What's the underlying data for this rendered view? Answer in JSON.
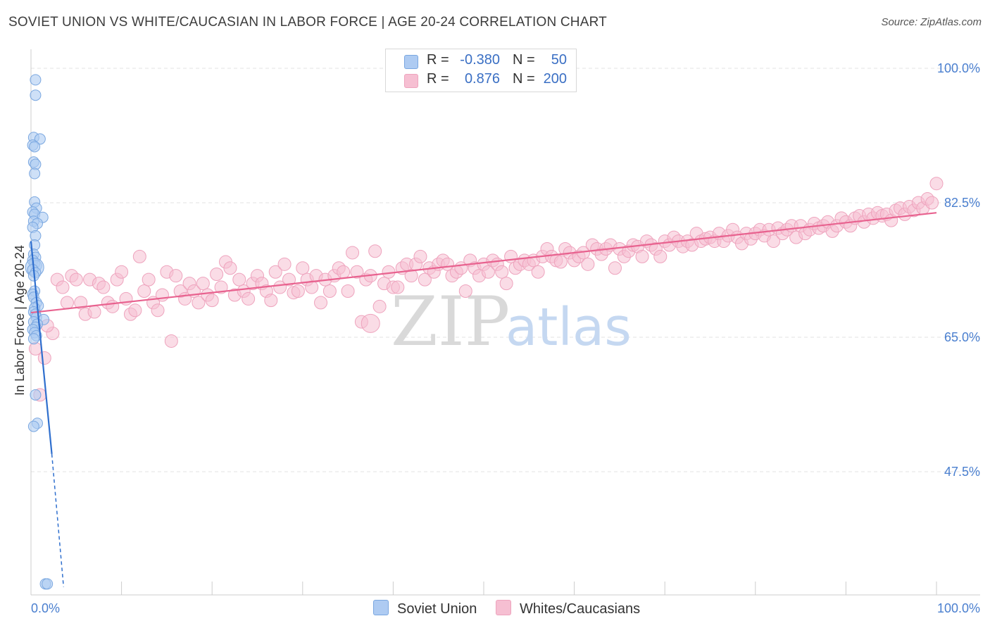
{
  "header": {
    "title": "SOVIET UNION VS WHITE/CAUCASIAN IN LABOR FORCE | AGE 20-24 CORRELATION CHART",
    "source": "Source: ZipAtlas.com"
  },
  "legend": {
    "rows": [
      {
        "r_label": "R =",
        "r_value": "-0.380",
        "n_label": "N =",
        "n_value": "50"
      },
      {
        "r_label": "R =",
        "r_value": "0.876",
        "n_label": "N =",
        "n_value": "200"
      }
    ]
  },
  "bottom_legend": {
    "items": [
      "Soviet Union",
      "Whites/Caucasians"
    ]
  },
  "watermark": {
    "zip": "ZIP",
    "atlas": "atlas"
  },
  "colors": {
    "soviet_fill": "#aecbf2",
    "soviet_stroke": "#7aa7e0",
    "soviet_line": "#2f6fce",
    "white_fill": "#f6bfd2",
    "white_stroke": "#eea3bd",
    "white_line": "#e8628f",
    "tick_text": "#4a7fcf",
    "grid": "#e3e3e3"
  },
  "chart_data": {
    "type": "scatter",
    "title": "SOVIET UNION VS WHITE/CAUCASIAN IN LABOR FORCE | AGE 20-24 CORRELATION CHART",
    "xlabel": "",
    "ylabel": "In Labor Force | Age 20-24",
    "xlim": [
      0,
      100
    ],
    "ylim": [
      30,
      103
    ],
    "x_tick_labels": [
      "0.0%",
      "100.0%"
    ],
    "y_ticks": [
      47.5,
      65.0,
      82.5,
      100.0
    ],
    "y_tick_labels": [
      "47.5%",
      "65.0%",
      "82.5%",
      "100.0%"
    ],
    "grid": true,
    "legend_position": "top-center",
    "series": [
      {
        "name": "Soviet Union",
        "r": -0.38,
        "n": 50,
        "trend": {
          "x": [
            0.0,
            2.3
          ],
          "y": [
            77.5,
            49.8
          ]
        },
        "trend_extension": {
          "x": [
            2.3,
            3.6
          ],
          "y": [
            49.8,
            32.5
          ]
        },
        "points": [
          [
            0.5,
            98.5
          ],
          [
            0.5,
            96.5
          ],
          [
            0.3,
            91.0
          ],
          [
            1.0,
            90.8
          ],
          [
            0.2,
            90.0
          ],
          [
            0.4,
            89.8
          ],
          [
            0.3,
            87.8
          ],
          [
            0.5,
            87.5
          ],
          [
            0.4,
            86.3
          ],
          [
            0.4,
            82.6
          ],
          [
            0.6,
            81.8
          ],
          [
            0.2,
            81.3
          ],
          [
            0.4,
            81.0
          ],
          [
            1.3,
            80.6
          ],
          [
            0.3,
            80.1
          ],
          [
            0.7,
            79.8
          ],
          [
            0.2,
            79.3
          ],
          [
            0.5,
            78.2
          ],
          [
            0.4,
            77.0
          ],
          [
            0.3,
            75.8
          ],
          [
            0.5,
            75.4
          ],
          [
            0.2,
            75.0
          ],
          [
            0.4,
            74.6
          ],
          [
            0.6,
            74.3
          ],
          [
            0.4,
            74.1
          ],
          [
            0.2,
            73.8
          ],
          [
            0.5,
            73.4
          ],
          [
            0.3,
            73.0
          ],
          [
            0.4,
            71.0
          ],
          [
            0.2,
            70.6
          ],
          [
            0.3,
            70.2
          ],
          [
            0.6,
            69.5
          ],
          [
            0.8,
            69.1
          ],
          [
            0.4,
            68.8
          ],
          [
            0.3,
            68.3
          ],
          [
            0.5,
            68.0
          ],
          [
            0.6,
            67.6
          ],
          [
            1.4,
            67.3
          ],
          [
            0.3,
            67.0
          ],
          [
            0.7,
            66.7
          ],
          [
            0.5,
            66.3
          ],
          [
            0.2,
            66.0
          ],
          [
            0.4,
            65.6
          ],
          [
            0.6,
            65.2
          ],
          [
            0.3,
            64.8
          ],
          [
            0.5,
            57.5
          ],
          [
            0.7,
            53.8
          ],
          [
            0.3,
            53.4
          ],
          [
            1.6,
            32.9
          ],
          [
            1.8,
            32.9
          ]
        ],
        "sizes": [
          1,
          1,
          1,
          1,
          1,
          1,
          1,
          1,
          1,
          1,
          1,
          1,
          1,
          1,
          1,
          1,
          1,
          1,
          1,
          1,
          1,
          1,
          1,
          1,
          3,
          1,
          1,
          1,
          1,
          1,
          1,
          1,
          1,
          1,
          1,
          1,
          1,
          1,
          1,
          1,
          1,
          1,
          1,
          1,
          1,
          1,
          1,
          1,
          1,
          1
        ]
      },
      {
        "name": "Whites/Caucasians",
        "r": 0.876,
        "n": 200,
        "trend": {
          "x": [
            0.0,
            100.0
          ],
          "y": [
            68.2,
            81.2
          ]
        },
        "points": [
          [
            0.5,
            63.5
          ],
          [
            1.5,
            62.3
          ],
          [
            1.0,
            57.5
          ],
          [
            2.4,
            65.5
          ],
          [
            1.8,
            66.5
          ],
          [
            2.9,
            72.5
          ],
          [
            3.5,
            71.5
          ],
          [
            4.0,
            69.5
          ],
          [
            4.5,
            73.0
          ],
          [
            5.0,
            72.5
          ],
          [
            5.5,
            69.5
          ],
          [
            6.0,
            68.0
          ],
          [
            6.5,
            72.5
          ],
          [
            7.0,
            68.3
          ],
          [
            7.5,
            72.0
          ],
          [
            8.0,
            71.5
          ],
          [
            8.5,
            69.5
          ],
          [
            9.0,
            69.0
          ],
          [
            9.5,
            72.5
          ],
          [
            10.0,
            73.5
          ],
          [
            10.5,
            70.0
          ],
          [
            11.0,
            68.0
          ],
          [
            11.5,
            68.5
          ],
          [
            12.0,
            75.5
          ],
          [
            12.5,
            71.0
          ],
          [
            13.0,
            72.5
          ],
          [
            13.5,
            69.5
          ],
          [
            14.0,
            68.5
          ],
          [
            14.5,
            70.5
          ],
          [
            15.0,
            73.5
          ],
          [
            15.5,
            64.5
          ],
          [
            16.0,
            73.0
          ],
          [
            16.5,
            71.0
          ],
          [
            17.0,
            70.0
          ],
          [
            17.5,
            72.0
          ],
          [
            18.0,
            71.0
          ],
          [
            18.5,
            69.5
          ],
          [
            19.0,
            72.0
          ],
          [
            19.5,
            70.5
          ],
          [
            20.0,
            69.8
          ],
          [
            20.5,
            73.2
          ],
          [
            21.0,
            71.5
          ],
          [
            21.5,
            74.8
          ],
          [
            22.0,
            74.0
          ],
          [
            22.5,
            70.5
          ],
          [
            23.0,
            72.5
          ],
          [
            23.5,
            71.0
          ],
          [
            24.0,
            70.0
          ],
          [
            24.5,
            72.0
          ],
          [
            25.0,
            73.0
          ],
          [
            25.5,
            72.0
          ],
          [
            26.0,
            71.0
          ],
          [
            26.5,
            69.8
          ],
          [
            27.0,
            73.5
          ],
          [
            27.5,
            71.5
          ],
          [
            28.0,
            74.5
          ],
          [
            28.5,
            72.5
          ],
          [
            29.0,
            70.8
          ],
          [
            29.5,
            71.0
          ],
          [
            30.0,
            74.0
          ],
          [
            30.5,
            72.5
          ],
          [
            31.0,
            71.5
          ],
          [
            31.5,
            73.0
          ],
          [
            32.0,
            69.5
          ],
          [
            32.5,
            72.5
          ],
          [
            33.0,
            71.0
          ],
          [
            33.5,
            73.0
          ],
          [
            34.0,
            74.0
          ],
          [
            34.5,
            73.5
          ],
          [
            35.0,
            71.0
          ],
          [
            35.5,
            76.0
          ],
          [
            36.0,
            73.5
          ],
          [
            36.5,
            67.0
          ],
          [
            37.0,
            72.5
          ],
          [
            37.5,
            73.0
          ],
          [
            38.0,
            76.2
          ],
          [
            38.5,
            69.0
          ],
          [
            39.0,
            72.0
          ],
          [
            39.5,
            73.5
          ],
          [
            40.0,
            71.5
          ],
          [
            40.5,
            71.5
          ],
          [
            41.0,
            74.0
          ],
          [
            41.5,
            74.5
          ],
          [
            42.0,
            73.0
          ],
          [
            42.5,
            74.5
          ],
          [
            43.0,
            75.5
          ],
          [
            43.5,
            72.5
          ],
          [
            44.0,
            74.0
          ],
          [
            44.5,
            73.5
          ],
          [
            45.0,
            74.5
          ],
          [
            45.5,
            75.0
          ],
          [
            46.0,
            74.5
          ],
          [
            46.5,
            73.0
          ],
          [
            47.0,
            73.5
          ],
          [
            47.5,
            74.0
          ],
          [
            48.0,
            71.0
          ],
          [
            48.5,
            75.0
          ],
          [
            49.0,
            74.0
          ],
          [
            49.5,
            73.0
          ],
          [
            50.0,
            74.5
          ],
          [
            50.5,
            73.5
          ],
          [
            51.0,
            75.0
          ],
          [
            51.5,
            74.5
          ],
          [
            52.0,
            73.5
          ],
          [
            52.5,
            72.0
          ],
          [
            53.0,
            75.5
          ],
          [
            53.5,
            74.0
          ],
          [
            54.0,
            74.5
          ],
          [
            54.5,
            75.0
          ],
          [
            55.0,
            74.5
          ],
          [
            55.5,
            75.0
          ],
          [
            56.0,
            73.5
          ],
          [
            56.5,
            75.5
          ],
          [
            57.0,
            76.5
          ],
          [
            57.5,
            75.5
          ],
          [
            58.0,
            75.0
          ],
          [
            58.5,
            74.8
          ],
          [
            59.0,
            76.5
          ],
          [
            59.5,
            76.0
          ],
          [
            60.0,
            75.0
          ],
          [
            60.5,
            75.5
          ],
          [
            61.0,
            76.0
          ],
          [
            61.5,
            74.5
          ],
          [
            62.0,
            77.0
          ],
          [
            62.5,
            76.5
          ],
          [
            63.0,
            75.8
          ],
          [
            63.5,
            76.5
          ],
          [
            64.0,
            77.0
          ],
          [
            64.5,
            74.0
          ],
          [
            65.0,
            76.5
          ],
          [
            65.5,
            75.5
          ],
          [
            66.0,
            76.2
          ],
          [
            66.5,
            77.0
          ],
          [
            67.0,
            76.8
          ],
          [
            67.5,
            75.5
          ],
          [
            68.0,
            77.5
          ],
          [
            68.5,
            77.0
          ],
          [
            69.0,
            76.5
          ],
          [
            69.5,
            75.5
          ],
          [
            70.0,
            77.5
          ],
          [
            70.5,
            77.0
          ],
          [
            71.0,
            78.0
          ],
          [
            71.5,
            77.5
          ],
          [
            72.0,
            76.8
          ],
          [
            72.5,
            77.5
          ],
          [
            73.0,
            77.0
          ],
          [
            73.5,
            78.5
          ],
          [
            74.0,
            77.5
          ],
          [
            74.5,
            77.8
          ],
          [
            75.0,
            78.0
          ],
          [
            75.5,
            77.5
          ],
          [
            76.0,
            78.5
          ],
          [
            76.5,
            77.5
          ],
          [
            77.0,
            78.2
          ],
          [
            77.5,
            79.0
          ],
          [
            78.0,
            78.0
          ],
          [
            78.5,
            77.2
          ],
          [
            79.0,
            78.5
          ],
          [
            79.5,
            77.8
          ],
          [
            80.0,
            78.5
          ],
          [
            80.5,
            79.0
          ],
          [
            81.0,
            78.2
          ],
          [
            81.5,
            79.0
          ],
          [
            82.0,
            77.5
          ],
          [
            82.5,
            79.2
          ],
          [
            83.0,
            78.5
          ],
          [
            83.5,
            79.0
          ],
          [
            84.0,
            79.5
          ],
          [
            84.5,
            78.0
          ],
          [
            85.0,
            79.5
          ],
          [
            85.5,
            78.5
          ],
          [
            86.0,
            79.0
          ],
          [
            86.5,
            79.8
          ],
          [
            87.0,
            79.2
          ],
          [
            87.5,
            79.5
          ],
          [
            88.0,
            80.0
          ],
          [
            88.5,
            78.8
          ],
          [
            89.0,
            79.5
          ],
          [
            89.5,
            80.5
          ],
          [
            90.0,
            80.0
          ],
          [
            90.5,
            79.5
          ],
          [
            91.0,
            80.5
          ],
          [
            91.5,
            80.8
          ],
          [
            92.0,
            80.0
          ],
          [
            92.5,
            81.0
          ],
          [
            93.0,
            80.5
          ],
          [
            93.5,
            81.2
          ],
          [
            94.0,
            80.8
          ],
          [
            94.5,
            81.0
          ],
          [
            95.0,
            80.2
          ],
          [
            95.5,
            81.5
          ],
          [
            96.0,
            81.8
          ],
          [
            96.5,
            81.0
          ],
          [
            97.0,
            82.0
          ],
          [
            97.5,
            81.5
          ],
          [
            98.0,
            82.5
          ],
          [
            98.5,
            81.8
          ],
          [
            99.0,
            83.0
          ],
          [
            99.5,
            82.5
          ],
          [
            100.0,
            85.0
          ]
        ]
      }
    ]
  }
}
